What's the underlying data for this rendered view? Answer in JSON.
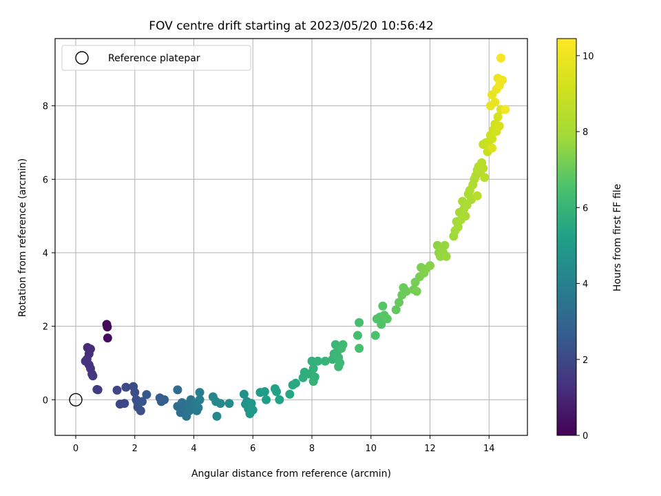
{
  "chart_data": {
    "type": "scatter",
    "title": "FOV centre drift starting at 2023/05/20 10:56:42",
    "xlabel": "Angular distance from reference (arcmin)",
    "ylabel": "Rotation from reference (arcmin)",
    "xlim": [
      -0.7,
      15.3
    ],
    "ylim": [
      -0.97,
      9.83
    ],
    "xticks": [
      0,
      2,
      4,
      6,
      8,
      10,
      12,
      14
    ],
    "yticks": [
      0,
      2,
      4,
      6,
      8
    ],
    "grid": true,
    "legend": {
      "location": "upper-left",
      "entries": [
        "Reference platepar"
      ]
    },
    "reference_point": {
      "label": "Reference platepar",
      "x": 0,
      "y": 0
    },
    "colorbar": {
      "label": "Hours from first FF file",
      "colormap": "viridis",
      "range": [
        0,
        10.45
      ],
      "ticks": [
        0,
        2,
        4,
        6,
        8,
        10
      ]
    },
    "series": [
      {
        "points": [
          [
            1.05,
            2.05,
            0.2
          ],
          [
            1.07,
            1.98,
            0.25
          ],
          [
            1.08,
            1.68,
            0.3
          ],
          [
            0.4,
            1.42,
            1.1
          ],
          [
            0.5,
            1.38,
            1.15
          ],
          [
            0.45,
            1.25,
            1.2
          ],
          [
            0.38,
            1.1,
            1.25
          ],
          [
            0.33,
            1.05,
            1.3
          ],
          [
            0.45,
            0.95,
            1.35
          ],
          [
            0.5,
            0.85,
            1.4
          ],
          [
            0.55,
            0.7,
            1.45
          ],
          [
            0.58,
            0.65,
            1.5
          ],
          [
            0.72,
            0.28,
            1.55
          ],
          [
            0.75,
            0.27,
            1.6
          ],
          [
            1.4,
            0.26,
            1.9
          ],
          [
            1.5,
            -0.12,
            1.95
          ],
          [
            1.65,
            -0.1,
            2.0
          ],
          [
            1.7,
            0.34,
            2.05
          ],
          [
            1.95,
            0.36,
            2.1
          ],
          [
            2.0,
            0.2,
            2.15
          ],
          [
            2.05,
            0.0,
            2.2
          ],
          [
            2.1,
            -0.2,
            2.25
          ],
          [
            2.2,
            -0.3,
            2.3
          ],
          [
            2.1,
            -0.08,
            2.35
          ],
          [
            2.25,
            -0.05,
            2.4
          ],
          [
            2.4,
            0.14,
            2.45
          ],
          [
            2.85,
            0.05,
            2.6
          ],
          [
            2.9,
            -0.05,
            2.65
          ],
          [
            3.0,
            0.0,
            2.7
          ],
          [
            3.45,
            0.27,
            3.2
          ],
          [
            3.45,
            -0.18,
            3.25
          ],
          [
            3.55,
            -0.35,
            3.3
          ],
          [
            3.6,
            -0.08,
            3.35
          ],
          [
            3.7,
            -0.2,
            3.4
          ],
          [
            3.75,
            -0.45,
            3.45
          ],
          [
            3.8,
            -0.12,
            3.5
          ],
          [
            3.85,
            -0.3,
            3.55
          ],
          [
            3.9,
            0.0,
            3.6
          ],
          [
            4.0,
            -0.2,
            3.65
          ],
          [
            4.05,
            -0.1,
            3.7
          ],
          [
            4.1,
            -0.3,
            3.75
          ],
          [
            4.15,
            -0.22,
            3.8
          ],
          [
            4.2,
            0.0,
            3.85
          ],
          [
            4.2,
            0.2,
            3.9
          ],
          [
            4.65,
            0.08,
            4.2
          ],
          [
            4.75,
            -0.05,
            4.25
          ],
          [
            4.78,
            -0.45,
            4.3
          ],
          [
            4.9,
            -0.1,
            4.35
          ],
          [
            5.2,
            -0.1,
            4.45
          ],
          [
            5.7,
            0.15,
            4.6
          ],
          [
            5.75,
            -0.12,
            4.65
          ],
          [
            5.8,
            -0.05,
            4.7
          ],
          [
            5.85,
            -0.25,
            4.75
          ],
          [
            5.9,
            -0.38,
            4.8
          ],
          [
            5.95,
            -0.1,
            4.85
          ],
          [
            6.0,
            -0.28,
            4.9
          ],
          [
            6.25,
            0.2,
            5.0
          ],
          [
            6.4,
            0.22,
            5.05
          ],
          [
            6.45,
            0.0,
            5.1
          ],
          [
            6.75,
            0.3,
            5.2
          ],
          [
            6.8,
            0.22,
            5.25
          ],
          [
            6.9,
            0.0,
            5.3
          ],
          [
            7.25,
            0.15,
            5.45
          ],
          [
            7.35,
            0.4,
            5.5
          ],
          [
            7.45,
            0.45,
            5.55
          ],
          [
            7.7,
            0.6,
            5.7
          ],
          [
            7.75,
            0.75,
            5.72
          ],
          [
            7.9,
            0.7,
            5.75
          ],
          [
            8.0,
            1.05,
            5.8
          ],
          [
            8.05,
            0.85,
            5.82
          ],
          [
            8.1,
            0.62,
            5.85
          ],
          [
            8.2,
            1.05,
            5.9
          ],
          [
            8.05,
            0.5,
            5.92
          ],
          [
            8.45,
            1.05,
            5.98
          ],
          [
            8.7,
            1.1,
            6.02
          ],
          [
            8.75,
            1.25,
            6.05
          ],
          [
            8.8,
            1.5,
            6.08
          ],
          [
            8.85,
            1.3,
            6.1
          ],
          [
            8.9,
            1.15,
            6.12
          ],
          [
            8.95,
            1.0,
            6.15
          ],
          [
            8.9,
            0.9,
            6.18
          ],
          [
            9.0,
            1.4,
            6.2
          ],
          [
            9.05,
            1.5,
            6.22
          ],
          [
            9.6,
            2.1,
            6.4
          ],
          [
            9.55,
            1.75,
            6.42
          ],
          [
            9.6,
            1.4,
            6.45
          ],
          [
            10.15,
            1.75,
            6.55
          ],
          [
            10.2,
            2.2,
            6.6
          ],
          [
            10.3,
            2.25,
            6.62
          ],
          [
            10.35,
            2.05,
            6.65
          ],
          [
            10.4,
            2.55,
            6.7
          ],
          [
            10.45,
            2.3,
            6.72
          ],
          [
            10.55,
            2.2,
            6.75
          ],
          [
            10.85,
            2.45,
            6.9
          ],
          [
            10.95,
            2.65,
            6.95
          ],
          [
            11.05,
            2.85,
            7.0
          ],
          [
            11.1,
            3.05,
            7.02
          ],
          [
            11.2,
            2.95,
            7.05
          ],
          [
            11.45,
            3.0,
            7.15
          ],
          [
            11.5,
            3.2,
            7.18
          ],
          [
            11.55,
            2.95,
            7.2
          ],
          [
            11.65,
            3.35,
            7.25
          ],
          [
            11.7,
            3.6,
            7.3
          ],
          [
            11.8,
            3.45,
            7.35
          ],
          [
            11.85,
            3.55,
            7.38
          ],
          [
            12.0,
            3.65,
            7.45
          ],
          [
            12.25,
            4.2,
            7.55
          ],
          [
            12.3,
            4.0,
            7.58
          ],
          [
            12.35,
            3.9,
            7.62
          ],
          [
            12.4,
            4.15,
            7.65
          ],
          [
            12.45,
            4.0,
            7.68
          ],
          [
            12.5,
            4.2,
            7.7
          ],
          [
            12.55,
            3.9,
            7.72
          ],
          [
            12.8,
            4.45,
            7.85
          ],
          [
            12.85,
            4.6,
            7.88
          ],
          [
            12.9,
            4.85,
            7.9
          ],
          [
            12.95,
            4.7,
            7.95
          ],
          [
            13.0,
            5.1,
            8.0
          ],
          [
            13.05,
            4.9,
            8.02
          ],
          [
            13.1,
            5.4,
            8.05
          ],
          [
            13.15,
            5.2,
            8.08
          ],
          [
            13.2,
            5.0,
            8.1
          ],
          [
            13.25,
            5.3,
            8.12
          ],
          [
            13.3,
            5.6,
            8.15
          ],
          [
            13.35,
            5.7,
            8.18
          ],
          [
            13.4,
            5.45,
            8.2
          ],
          [
            13.45,
            5.85,
            8.25
          ],
          [
            13.5,
            6.0,
            8.28
          ],
          [
            13.55,
            6.1,
            8.3
          ],
          [
            13.6,
            6.25,
            8.35
          ],
          [
            13.65,
            6.35,
            8.38
          ],
          [
            13.7,
            6.2,
            8.4
          ],
          [
            13.75,
            6.45,
            8.45
          ],
          [
            13.6,
            5.55,
            8.48
          ],
          [
            13.8,
            6.3,
            8.5
          ],
          [
            13.85,
            6.05,
            8.52
          ],
          [
            13.8,
            6.95,
            8.85
          ],
          [
            13.9,
            7.0,
            8.9
          ],
          [
            13.95,
            6.75,
            8.95
          ],
          [
            14.0,
            6.9,
            9.0
          ],
          [
            14.05,
            7.2,
            9.05
          ],
          [
            14.1,
            7.1,
            9.1
          ],
          [
            14.15,
            7.35,
            9.15
          ],
          [
            14.2,
            7.5,
            9.2
          ],
          [
            14.25,
            7.3,
            9.25
          ],
          [
            14.3,
            7.7,
            9.3
          ],
          [
            14.35,
            7.45,
            9.35
          ],
          [
            14.4,
            7.9,
            9.45
          ],
          [
            14.1,
            6.85,
            9.5
          ],
          [
            14.05,
            8.0,
            9.8
          ],
          [
            14.1,
            8.3,
            9.85
          ],
          [
            14.2,
            8.1,
            9.9
          ],
          [
            14.25,
            8.45,
            9.95
          ],
          [
            14.3,
            8.75,
            10.0
          ],
          [
            14.35,
            8.55,
            10.05
          ],
          [
            14.45,
            8.7,
            10.1
          ],
          [
            14.55,
            7.9,
            10.15
          ],
          [
            14.4,
            9.3,
            10.3
          ]
        ]
      }
    ]
  }
}
